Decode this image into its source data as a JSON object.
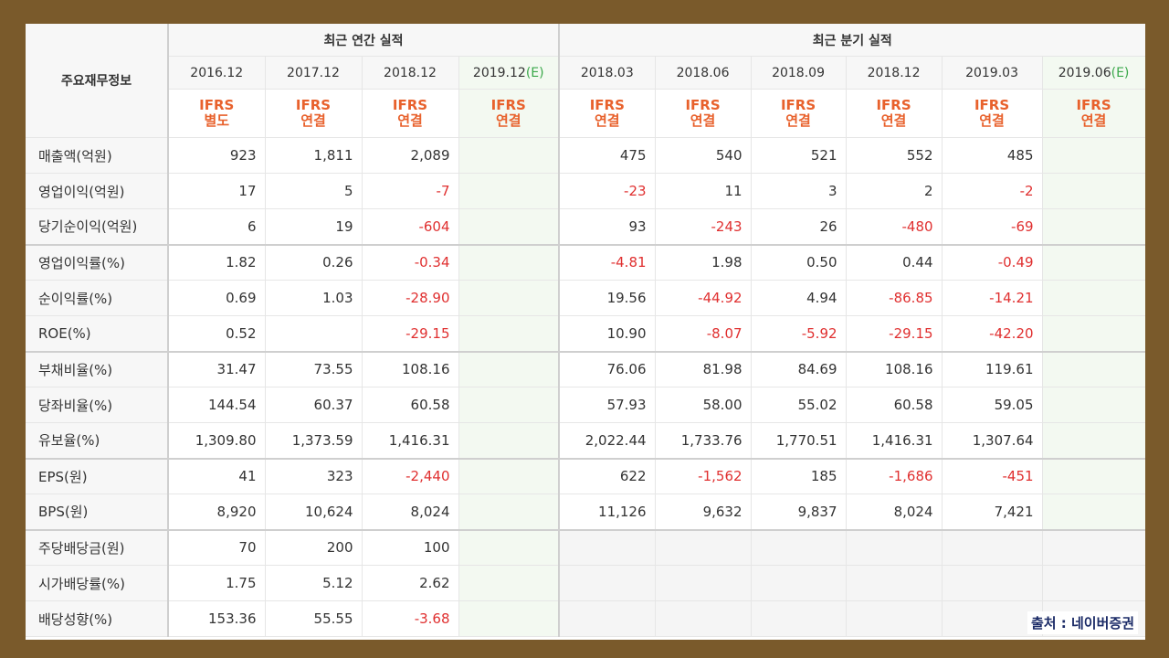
{
  "header": {
    "row_title": "주요재무정보",
    "annual_title": "최근 연간 실적",
    "quarter_title": "최근 분기 실적",
    "annual_periods": [
      {
        "label": "2016.12",
        "est": "",
        "std_top": "IFRS",
        "std_bot": "별도"
      },
      {
        "label": "2017.12",
        "est": "",
        "std_top": "IFRS",
        "std_bot": "연결"
      },
      {
        "label": "2018.12",
        "est": "",
        "std_top": "IFRS",
        "std_bot": "연결"
      },
      {
        "label": "2019.12",
        "est": "(E)",
        "std_top": "IFRS",
        "std_bot": "연결"
      }
    ],
    "quarter_periods": [
      {
        "label": "2018.03",
        "est": "",
        "std_top": "IFRS",
        "std_bot": "연결"
      },
      {
        "label": "2018.06",
        "est": "",
        "std_top": "IFRS",
        "std_bot": "연결"
      },
      {
        "label": "2018.09",
        "est": "",
        "std_top": "IFRS",
        "std_bot": "연결"
      },
      {
        "label": "2018.12",
        "est": "",
        "std_top": "IFRS",
        "std_bot": "연결"
      },
      {
        "label": "2019.03",
        "est": "",
        "std_top": "IFRS",
        "std_bot": "연결"
      },
      {
        "label": "2019.06",
        "est": "(E)",
        "std_top": "IFRS",
        "std_bot": "연결"
      }
    ]
  },
  "rows": [
    {
      "label": "매출액(억원)",
      "annual": [
        "923",
        "1,811",
        "2,089",
        ""
      ],
      "quarter": [
        "475",
        "540",
        "521",
        "552",
        "485",
        ""
      ]
    },
    {
      "label": "영업이익(억원)",
      "annual": [
        "17",
        "5",
        "-7",
        ""
      ],
      "quarter": [
        "-23",
        "11",
        "3",
        "2",
        "-2",
        ""
      ]
    },
    {
      "label": "당기순이익(억원)",
      "annual": [
        "6",
        "19",
        "-604",
        ""
      ],
      "quarter": [
        "93",
        "-243",
        "26",
        "-480",
        "-69",
        ""
      ]
    },
    {
      "label": "영업이익률(%)",
      "annual": [
        "1.82",
        "0.26",
        "-0.34",
        ""
      ],
      "quarter": [
        "-4.81",
        "1.98",
        "0.50",
        "0.44",
        "-0.49",
        ""
      ]
    },
    {
      "label": "순이익률(%)",
      "annual": [
        "0.69",
        "1.03",
        "-28.90",
        ""
      ],
      "quarter": [
        "19.56",
        "-44.92",
        "4.94",
        "-86.85",
        "-14.21",
        ""
      ]
    },
    {
      "label": "ROE(%)",
      "annual": [
        "0.52",
        "",
        "-29.15",
        ""
      ],
      "quarter": [
        "10.90",
        "-8.07",
        "-5.92",
        "-29.15",
        "-42.20",
        ""
      ]
    },
    {
      "label": "부채비율(%)",
      "annual": [
        "31.47",
        "73.55",
        "108.16",
        ""
      ],
      "quarter": [
        "76.06",
        "81.98",
        "84.69",
        "108.16",
        "119.61",
        ""
      ]
    },
    {
      "label": "당좌비율(%)",
      "annual": [
        "144.54",
        "60.37",
        "60.58",
        ""
      ],
      "quarter": [
        "57.93",
        "58.00",
        "55.02",
        "60.58",
        "59.05",
        ""
      ]
    },
    {
      "label": "유보율(%)",
      "annual": [
        "1,309.80",
        "1,373.59",
        "1,416.31",
        ""
      ],
      "quarter": [
        "2,022.44",
        "1,733.76",
        "1,770.51",
        "1,416.31",
        "1,307.64",
        ""
      ]
    },
    {
      "label": "EPS(원)",
      "annual": [
        "41",
        "323",
        "-2,440",
        ""
      ],
      "quarter": [
        "622",
        "-1,562",
        "185",
        "-1,686",
        "-451",
        ""
      ]
    },
    {
      "label": "BPS(원)",
      "annual": [
        "8,920",
        "10,624",
        "8,024",
        ""
      ],
      "quarter": [
        "11,126",
        "9,632",
        "9,837",
        "8,024",
        "7,421",
        ""
      ]
    },
    {
      "label": "주당배당금(원)",
      "annual": [
        "70",
        "200",
        "100",
        ""
      ],
      "quarter": [
        "",
        "",
        "",
        "",
        "",
        ""
      ]
    },
    {
      "label": "시가배당률(%)",
      "annual": [
        "1.75",
        "5.12",
        "2.62",
        ""
      ],
      "quarter": [
        "",
        "",
        "",
        "",
        "",
        ""
      ]
    },
    {
      "label": "배당성향(%)",
      "annual": [
        "153.36",
        "55.55",
        "-3.68",
        ""
      ],
      "quarter": [
        "",
        "",
        "",
        "",
        "",
        ""
      ]
    }
  ],
  "source": "출처 : 네이버증권"
}
